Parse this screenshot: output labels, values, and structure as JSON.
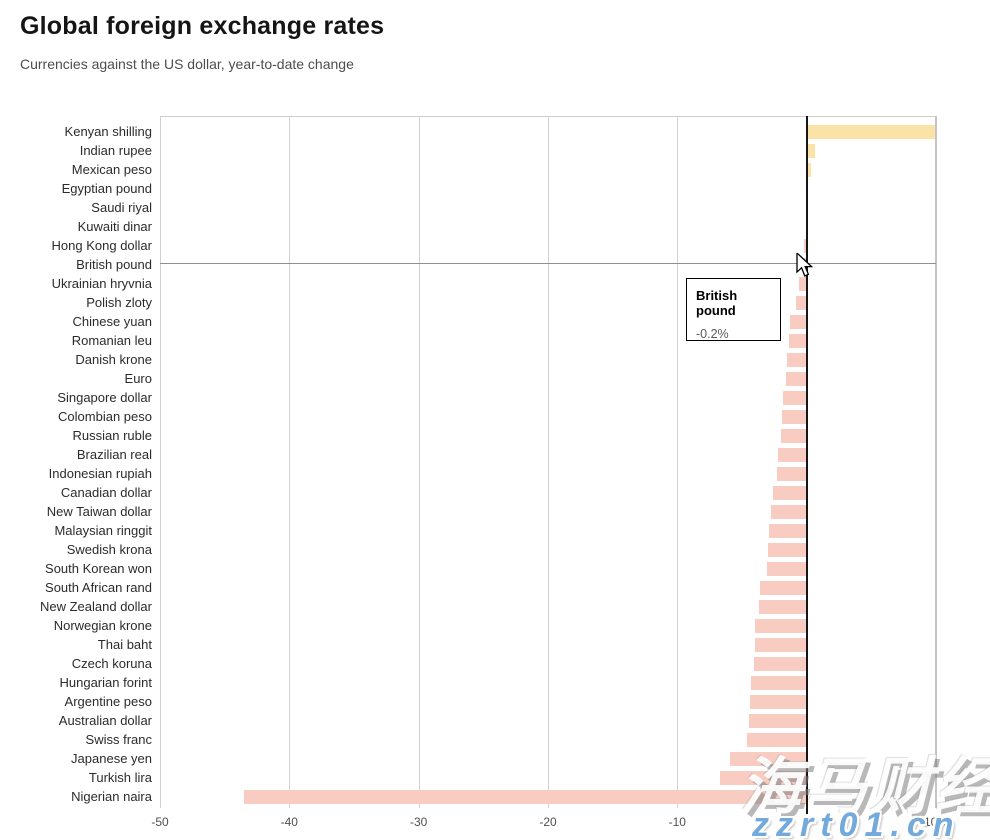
{
  "header": {
    "title": "Global foreign exchange rates",
    "subtitle": "Currencies against the US dollar, year-to-date change"
  },
  "chart_data": {
    "type": "bar",
    "orientation": "horizontal",
    "title": "Global foreign exchange rates",
    "subtitle": "Currencies against the US dollar, year-to-date change",
    "unit": "%",
    "xlim": [
      -50,
      10
    ],
    "grid": true,
    "x_ticks": [
      {
        "value": -50,
        "label": "-50"
      },
      {
        "value": -40,
        "label": "-40"
      },
      {
        "value": -30,
        "label": "-30"
      },
      {
        "value": -20,
        "label": "-20"
      },
      {
        "value": -10,
        "label": "-10"
      },
      {
        "value": 0,
        "label": "0"
      },
      {
        "value": 10,
        "label": "10%"
      }
    ],
    "points": [
      {
        "label": "Kenyan shilling",
        "value": 9.8
      },
      {
        "label": "Indian rupee",
        "value": 0.5
      },
      {
        "label": "Mexican peso",
        "value": 0.2
      },
      {
        "label": "Egyptian pound",
        "value": 0.0
      },
      {
        "label": "Saudi riyal",
        "value": 0.0
      },
      {
        "label": "Kuwaiti dinar",
        "value": 0.0
      },
      {
        "label": "Hong Kong dollar",
        "value": -0.2
      },
      {
        "label": "British pound",
        "value": -0.2
      },
      {
        "label": "Ukrainian hryvnia",
        "value": -0.6
      },
      {
        "label": "Polish zloty",
        "value": -0.8
      },
      {
        "label": "Chinese yuan",
        "value": -1.3
      },
      {
        "label": "Romanian leu",
        "value": -1.4
      },
      {
        "label": "Danish krone",
        "value": -1.5
      },
      {
        "label": "Euro",
        "value": -1.6
      },
      {
        "label": "Singapore dollar",
        "value": -1.8
      },
      {
        "label": "Colombian peso",
        "value": -1.9
      },
      {
        "label": "Russian ruble",
        "value": -2.0
      },
      {
        "label": "Brazilian real",
        "value": -2.2
      },
      {
        "label": "Indonesian rupiah",
        "value": -2.3
      },
      {
        "label": "Canadian dollar",
        "value": -2.6
      },
      {
        "label": "New Taiwan dollar",
        "value": -2.8
      },
      {
        "label": "Malaysian ringgit",
        "value": -2.9
      },
      {
        "label": "Swedish krona",
        "value": -3.0
      },
      {
        "label": "South Korean won",
        "value": -3.1
      },
      {
        "label": "South African rand",
        "value": -3.6
      },
      {
        "label": "New Zealand dollar",
        "value": -3.7
      },
      {
        "label": "Norwegian krone",
        "value": -4.0
      },
      {
        "label": "Thai baht",
        "value": -4.0
      },
      {
        "label": "Czech koruna",
        "value": -4.1
      },
      {
        "label": "Hungarian forint",
        "value": -4.3
      },
      {
        "label": "Argentine peso",
        "value": -4.4
      },
      {
        "label": "Australian dollar",
        "value": -4.5
      },
      {
        "label": "Swiss franc",
        "value": -4.6
      },
      {
        "label": "Japanese yen",
        "value": -5.9
      },
      {
        "label": "Turkish lira",
        "value": -6.7
      },
      {
        "label": "Nigerian naira",
        "value": -43.5
      }
    ],
    "colors": {
      "positive_bar": "#fbe2a6",
      "negative_bar": "#f9ccc1",
      "zero_line": "#161616",
      "gridline": "#d2d2d2",
      "hover_line": "#8f8f8f"
    },
    "legend": null,
    "hovered_row": "British pound"
  },
  "tooltip": {
    "title": "British pound",
    "value_label": "-0.2%"
  },
  "watermark": {
    "brand_text": "海马财经",
    "site_text": "zzrt01.cn"
  }
}
